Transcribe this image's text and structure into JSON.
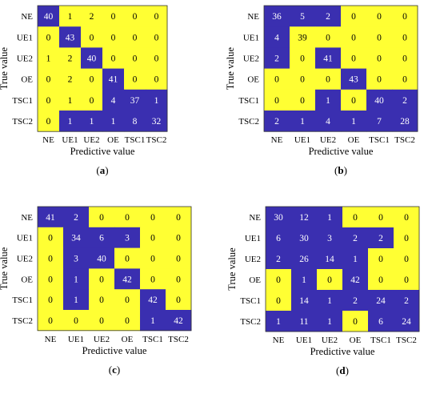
{
  "colors": {
    "high": "#ffff33",
    "low": "#3a2fb0",
    "text_on_high": "#000000",
    "text_on_low": "#ffffff",
    "border": "#333333"
  },
  "chart_data": [
    {
      "type": "heatmap",
      "panel": "(a)",
      "xlabel": "Predictive value",
      "ylabel": "True value",
      "categories_x": [
        "NE",
        "UE1",
        "UE2",
        "OE",
        "TSC1",
        "TSC2"
      ],
      "categories_y": [
        "NE",
        "UE1",
        "UE2",
        "OE",
        "TSC1",
        "TSC2"
      ],
      "values": [
        [
          40,
          1,
          2,
          0,
          0,
          0
        ],
        [
          0,
          43,
          0,
          0,
          0,
          0
        ],
        [
          1,
          2,
          40,
          0,
          0,
          0
        ],
        [
          0,
          2,
          0,
          41,
          0,
          0
        ],
        [
          0,
          1,
          0,
          4,
          37,
          1
        ],
        [
          0,
          1,
          1,
          1,
          8,
          32
        ]
      ],
      "highlight": [
        [
          0,
          1,
          1,
          1,
          1,
          1
        ],
        [
          1,
          0,
          1,
          1,
          1,
          1
        ],
        [
          1,
          1,
          0,
          1,
          1,
          1
        ],
        [
          1,
          1,
          1,
          0,
          1,
          1
        ],
        [
          1,
          1,
          1,
          0,
          0,
          0
        ],
        [
          1,
          0,
          0,
          0,
          0,
          0
        ]
      ]
    },
    {
      "type": "heatmap",
      "panel": "(b)",
      "xlabel": "Predictive value",
      "ylabel": "True value",
      "categories_x": [
        "NE",
        "UE1",
        "UE2",
        "OE",
        "TSC1",
        "TSC2"
      ],
      "categories_y": [
        "NE",
        "UE1",
        "UE2",
        "OE",
        "TSC1",
        "TSC2"
      ],
      "values": [
        [
          36,
          5,
          2,
          0,
          0,
          0
        ],
        [
          4,
          39,
          0,
          0,
          0,
          0
        ],
        [
          2,
          0,
          41,
          0,
          0,
          0
        ],
        [
          0,
          0,
          0,
          43,
          0,
          0
        ],
        [
          0,
          0,
          1,
          0,
          40,
          2
        ],
        [
          2,
          1,
          4,
          1,
          7,
          28
        ]
      ],
      "highlight": [
        [
          0,
          0,
          0,
          1,
          1,
          1
        ],
        [
          0,
          1,
          1,
          1,
          1,
          1
        ],
        [
          0,
          1,
          0,
          1,
          1,
          1
        ],
        [
          1,
          1,
          1,
          0,
          1,
          1
        ],
        [
          1,
          1,
          0,
          1,
          0,
          0
        ],
        [
          0,
          0,
          0,
          0,
          0,
          0
        ]
      ]
    },
    {
      "type": "heatmap",
      "panel": "(c)",
      "xlabel": "Predictive value",
      "ylabel": "True value",
      "categories_x": [
        "NE",
        "UE1",
        "UE2",
        "OE",
        "TSC1",
        "TSC2"
      ],
      "categories_y": [
        "NE",
        "UE1",
        "UE2",
        "OE",
        "TSC1",
        "TSC2"
      ],
      "values": [
        [
          41,
          2,
          0,
          0,
          0,
          0
        ],
        [
          0,
          34,
          6,
          3,
          0,
          0
        ],
        [
          0,
          3,
          40,
          0,
          0,
          0
        ],
        [
          0,
          1,
          0,
          42,
          0,
          0
        ],
        [
          0,
          1,
          0,
          0,
          42,
          0
        ],
        [
          0,
          0,
          0,
          0,
          1,
          42
        ]
      ],
      "highlight": [
        [
          0,
          0,
          1,
          1,
          1,
          1
        ],
        [
          1,
          0,
          0,
          0,
          1,
          1
        ],
        [
          1,
          0,
          0,
          1,
          1,
          1
        ],
        [
          1,
          0,
          1,
          0,
          1,
          1
        ],
        [
          1,
          0,
          1,
          1,
          0,
          1
        ],
        [
          1,
          1,
          1,
          1,
          0,
          0
        ]
      ]
    },
    {
      "type": "heatmap",
      "panel": "(d)",
      "xlabel": "Predictive value",
      "ylabel": "True value",
      "categories_x": [
        "NE",
        "UE1",
        "UE2",
        "OE",
        "TSC1",
        "TSC2"
      ],
      "categories_y": [
        "NE",
        "UE1",
        "UE2",
        "OE",
        "TSC1",
        "TSC2"
      ],
      "values": [
        [
          30,
          12,
          1,
          0,
          0,
          0
        ],
        [
          6,
          30,
          3,
          2,
          2,
          0
        ],
        [
          2,
          26,
          14,
          1,
          0,
          0
        ],
        [
          0,
          1,
          0,
          42,
          0,
          0
        ],
        [
          0,
          14,
          1,
          2,
          24,
          2
        ],
        [
          1,
          11,
          1,
          0,
          6,
          24
        ]
      ],
      "highlight": [
        [
          0,
          0,
          0,
          1,
          1,
          1
        ],
        [
          0,
          0,
          0,
          0,
          0,
          1
        ],
        [
          0,
          0,
          0,
          0,
          1,
          1
        ],
        [
          1,
          0,
          1,
          0,
          1,
          1
        ],
        [
          1,
          0,
          0,
          0,
          0,
          0
        ],
        [
          0,
          0,
          0,
          1,
          0,
          0
        ]
      ]
    }
  ]
}
